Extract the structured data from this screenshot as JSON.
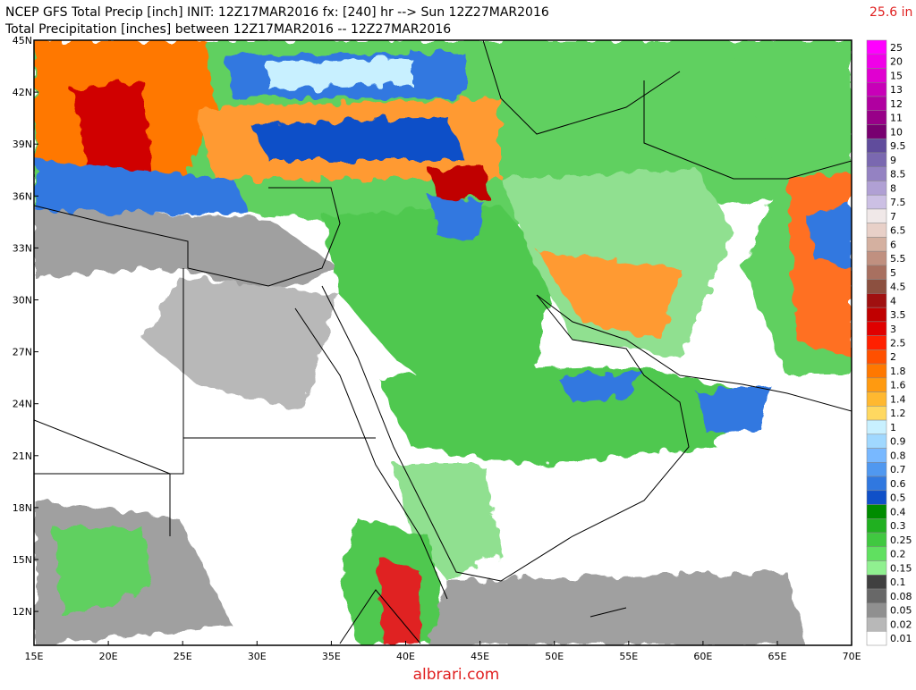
{
  "header": {
    "title": "NCEP GFS Total Precip [inch] INIT: 12Z17MAR2016 fx: [240] hr --> Sun 12Z27MAR2016",
    "subtitle": "Total Precipitation [inches] between 12Z17MAR2016 -- 12Z27MAR2016",
    "max_label": "25.6 in"
  },
  "map": {
    "lat_labels": [
      "45N",
      "42N",
      "39N",
      "36N",
      "33N",
      "30N",
      "27N",
      "24N",
      "21N",
      "18N",
      "15N",
      "12N"
    ],
    "lon_labels": [
      "15E",
      "20E",
      "25E",
      "30E",
      "35E",
      "40E",
      "45E",
      "50E",
      "55E",
      "60E",
      "65E",
      "70E"
    ]
  },
  "colorbar": {
    "labels": [
      "25",
      "20",
      "15",
      "13",
      "12",
      "11",
      "10",
      "9.5",
      "9",
      "8.5",
      "8",
      "7.5",
      "7",
      "6.5",
      "6",
      "5.5",
      "5",
      "4.5",
      "4",
      "3.5",
      "3",
      "2.5",
      "2",
      "1.8",
      "1.6",
      "1.4",
      "1.2",
      "1",
      "0.9",
      "0.8",
      "0.7",
      "0.6",
      "0.5",
      "0.4",
      "0.3",
      "0.25",
      "0.2",
      "0.15",
      "0.1",
      "0.08",
      "0.05",
      "0.02",
      "0.01"
    ],
    "colors": [
      "#ff00ff",
      "#f000e8",
      "#e000d0",
      "#c800b8",
      "#b000a0",
      "#980088",
      "#780070",
      "#604c9c",
      "#7a68b0",
      "#9482c2",
      "#b0a0d4",
      "#ccc0e4",
      "#f0e8e8",
      "#e8d0c8",
      "#d4b0a0",
      "#c09080",
      "#a87060",
      "#8c5040",
      "#a01010",
      "#c00000",
      "#e00000",
      "#ff2000",
      "#ff5000",
      "#ff7800",
      "#ff9a10",
      "#ffb830",
      "#ffd860",
      "#c8f0ff",
      "#a0d8ff",
      "#78b8ff",
      "#5098f0",
      "#3078e0",
      "#1050c8",
      "#008c00",
      "#20b020",
      "#40c840",
      "#60e060",
      "#90f090",
      "#404040",
      "#686868",
      "#909090",
      "#b8b8b8",
      "#ffffff"
    ]
  },
  "footer": {
    "watermark": "albrari.com"
  }
}
